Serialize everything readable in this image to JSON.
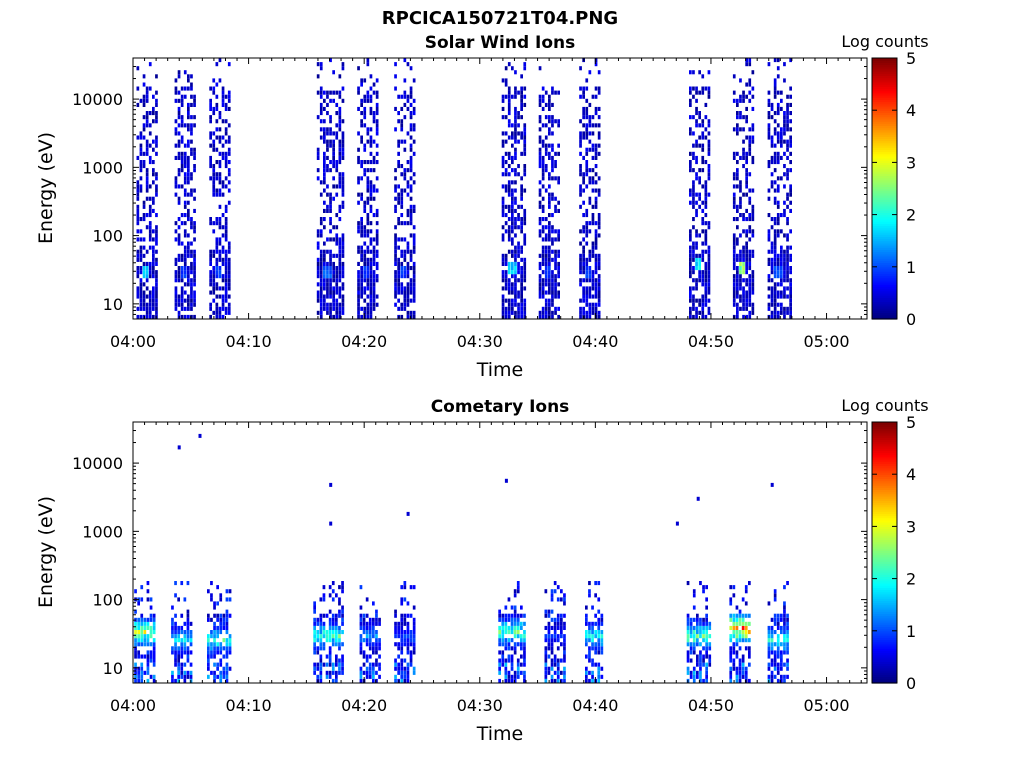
{
  "figure": {
    "title": "RPCICA150721T04.PNG"
  },
  "colorscale": {
    "stops": [
      "#00007f",
      "#0000ff",
      "#007fff",
      "#00ffff",
      "#7fff7f",
      "#ffff00",
      "#ff7f00",
      "#ff0000",
      "#7f0000"
    ]
  },
  "chart_data": [
    {
      "type": "heatmap",
      "title": "Solar Wind Ions",
      "xlabel": "Time",
      "ylabel": "Energy (eV)",
      "colorbar_label": "Log counts",
      "colorbar_ticks": [
        "0",
        "1",
        "2",
        "3",
        "4",
        "5"
      ],
      "colorbar_range": [
        0,
        5
      ],
      "xticks": [
        "04:00",
        "04:10",
        "04:20",
        "04:30",
        "04:40",
        "04:50",
        "05:00"
      ],
      "yticks": [
        "10",
        "100",
        "1000",
        "10000"
      ],
      "x_range_minutes": [
        0,
        63.5
      ],
      "y_scale": "log",
      "y_range_ev": [
        6,
        40000
      ],
      "activity_intervals": [
        {
          "start_min": 0.3,
          "end_min": 2.3,
          "peak_log": 1.8,
          "peak_ev": 30
        },
        {
          "start_min": 3.6,
          "end_min": 5.4,
          "peak_log": 1.0,
          "peak_ev": 30
        },
        {
          "start_min": 6.6,
          "end_min": 8.6,
          "peak_log": 1.0,
          "peak_ev": 30
        },
        {
          "start_min": 15.9,
          "end_min": 18.4,
          "peak_log": 1.2,
          "peak_ev": 30
        },
        {
          "start_min": 19.4,
          "end_min": 21.4,
          "peak_log": 1.0,
          "peak_ev": 30
        },
        {
          "start_min": 22.6,
          "end_min": 24.6,
          "peak_log": 1.0,
          "peak_ev": 30
        },
        {
          "start_min": 31.9,
          "end_min": 34.1,
          "peak_log": 1.8,
          "peak_ev": 35
        },
        {
          "start_min": 35.1,
          "end_min": 37.1,
          "peak_log": 1.0,
          "peak_ev": 30
        },
        {
          "start_min": 38.6,
          "end_min": 40.6,
          "peak_log": 1.0,
          "peak_ev": 30
        },
        {
          "start_min": 48.1,
          "end_min": 50.1,
          "peak_log": 2.0,
          "peak_ev": 40
        },
        {
          "start_min": 51.9,
          "end_min": 53.9,
          "peak_log": 2.8,
          "peak_ev": 35
        },
        {
          "start_min": 54.9,
          "end_min": 57.1,
          "peak_log": 1.2,
          "peak_ev": 30
        }
      ]
    },
    {
      "type": "heatmap",
      "title": "Cometary Ions",
      "xlabel": "Time",
      "ylabel": "Energy (eV)",
      "colorbar_label": "Log counts",
      "colorbar_ticks": [
        "0",
        "1",
        "2",
        "3",
        "4",
        "5"
      ],
      "colorbar_range": [
        0,
        5
      ],
      "xticks": [
        "04:00",
        "04:10",
        "04:20",
        "04:30",
        "04:40",
        "04:50",
        "05:00"
      ],
      "yticks": [
        "10",
        "100",
        "1000",
        "10000"
      ],
      "x_range_minutes": [
        0,
        63.5
      ],
      "y_scale": "log",
      "y_range_ev": [
        6,
        40000
      ],
      "activity_intervals": [
        {
          "start_min": 0.1,
          "end_min": 2.1,
          "peak_log": 3.3,
          "peak_ev": 35
        },
        {
          "start_min": 3.3,
          "end_min": 5.3,
          "peak_log": 2.0,
          "peak_ev": 25
        },
        {
          "start_min": 6.4,
          "end_min": 8.6,
          "peak_log": 2.5,
          "peak_ev": 25
        },
        {
          "start_min": 15.6,
          "end_min": 18.2,
          "peak_log": 2.6,
          "peak_ev": 30
        },
        {
          "start_min": 19.6,
          "end_min": 21.4,
          "peak_log": 1.6,
          "peak_ev": 30
        },
        {
          "start_min": 22.6,
          "end_min": 24.6,
          "peak_log": 1.2,
          "peak_ev": 30
        },
        {
          "start_min": 31.6,
          "end_min": 34.1,
          "peak_log": 2.8,
          "peak_ev": 35
        },
        {
          "start_min": 35.6,
          "end_min": 37.6,
          "peak_log": 1.0,
          "peak_ev": 30
        },
        {
          "start_min": 39.1,
          "end_min": 40.6,
          "peak_log": 2.4,
          "peak_ev": 30
        },
        {
          "start_min": 47.9,
          "end_min": 50.1,
          "peak_log": 2.8,
          "peak_ev": 30
        },
        {
          "start_min": 51.6,
          "end_min": 53.6,
          "peak_log": 4.6,
          "peak_ev": 38
        },
        {
          "start_min": 54.9,
          "end_min": 56.9,
          "peak_log": 2.4,
          "peak_ev": 25
        }
      ],
      "isolated_points": [
        {
          "min": 4.0,
          "ev": 17000
        },
        {
          "min": 5.8,
          "ev": 25000
        },
        {
          "min": 17.1,
          "ev": 4800
        },
        {
          "min": 17.1,
          "ev": 1300
        },
        {
          "min": 23.8,
          "ev": 1800
        },
        {
          "min": 32.3,
          "ev": 5500
        },
        {
          "min": 47.1,
          "ev": 1300
        },
        {
          "min": 48.9,
          "ev": 3000
        },
        {
          "min": 55.3,
          "ev": 4800
        }
      ]
    }
  ]
}
